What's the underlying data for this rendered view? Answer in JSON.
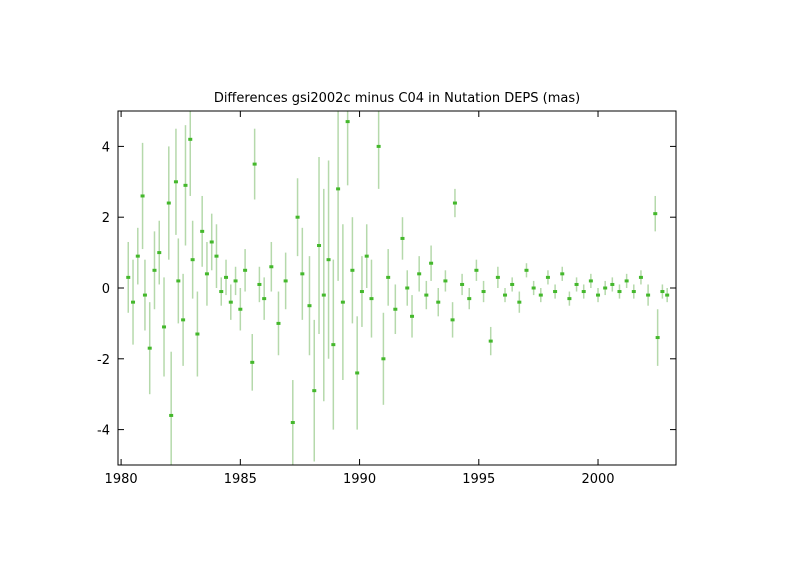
{
  "chart_data": {
    "type": "scatter",
    "title": "Differences gsi2002c minus C04 in Nutation DEPS (mas)",
    "xlim": [
      1979.87,
      2003.27
    ],
    "ylim": [
      -5,
      5
    ],
    "xticks": [
      1980,
      1985,
      1990,
      1995,
      2000
    ],
    "yticks": [
      -4,
      -2,
      0,
      2,
      4
    ],
    "point_color": "#44b82c",
    "error_color": "#b5d9ab",
    "x": [
      1980.3,
      1980.5,
      1980.7,
      1980.9,
      1981.0,
      1981.2,
      1981.4,
      1981.6,
      1981.8,
      1982.0,
      1982.1,
      1982.3,
      1982.4,
      1982.6,
      1982.7,
      1982.9,
      1983.0,
      1983.2,
      1983.4,
      1983.6,
      1983.8,
      1984.0,
      1984.2,
      1984.4,
      1984.6,
      1984.8,
      1985.0,
      1985.2,
      1985.5,
      1985.6,
      1985.8,
      1986.0,
      1986.3,
      1986.6,
      1986.9,
      1987.2,
      1987.4,
      1987.6,
      1987.9,
      1988.1,
      1988.3,
      1988.5,
      1988.7,
      1988.9,
      1989.1,
      1989.3,
      1989.5,
      1989.7,
      1989.9,
      1990.1,
      1990.3,
      1990.5,
      1990.8,
      1991.0,
      1991.2,
      1991.5,
      1991.8,
      1992.0,
      1992.2,
      1992.5,
      1992.8,
      1993.0,
      1993.3,
      1993.6,
      1993.9,
      1994.0,
      1994.3,
      1994.6,
      1994.9,
      1995.2,
      1995.5,
      1995.8,
      1996.1,
      1996.4,
      1996.7,
      1997.0,
      1997.3,
      1997.6,
      1997.9,
      1998.2,
      1998.5,
      1998.8,
      1999.1,
      1999.4,
      1999.7,
      2000.0,
      2000.3,
      2000.6,
      2000.9,
      2001.2,
      2001.5,
      2001.8,
      2002.1,
      2002.4,
      2002.5,
      2002.7,
      2002.9
    ],
    "values": [
      0.3,
      -0.4,
      0.9,
      2.6,
      -0.2,
      -1.7,
      0.5,
      1.0,
      -1.1,
      2.4,
      -3.6,
      3.0,
      0.2,
      -0.9,
      2.9,
      4.2,
      0.8,
      -1.3,
      1.6,
      0.4,
      1.3,
      0.9,
      -0.1,
      0.3,
      -0.4,
      0.2,
      -0.6,
      0.5,
      -2.1,
      3.5,
      0.1,
      -0.3,
      0.6,
      -1.0,
      0.2,
      -3.8,
      2.0,
      0.4,
      -0.5,
      -2.9,
      1.2,
      -0.2,
      0.8,
      -1.6,
      2.8,
      -0.4,
      4.7,
      0.5,
      -2.4,
      -0.1,
      0.9,
      -0.3,
      4.0,
      -2.0,
      0.3,
      -0.6,
      1.4,
      0.0,
      -0.8,
      0.4,
      -0.2,
      0.7,
      -0.4,
      0.2,
      -0.9,
      2.4,
      0.1,
      -0.3,
      0.5,
      -0.1,
      -1.5,
      0.3,
      -0.2,
      0.1,
      -0.4,
      0.5,
      0.0,
      -0.2,
      0.3,
      -0.1,
      0.4,
      -0.3,
      0.1,
      -0.1,
      0.2,
      -0.2,
      0.0,
      0.1,
      -0.1,
      0.2,
      -0.1,
      0.3,
      -0.2,
      2.1,
      -1.4,
      -0.1,
      -0.2
    ],
    "errors": [
      1.0,
      1.2,
      0.8,
      1.5,
      1.0,
      1.3,
      1.1,
      0.9,
      1.4,
      1.6,
      1.8,
      1.5,
      1.2,
      1.3,
      1.7,
      1.6,
      1.1,
      1.2,
      1.0,
      0.9,
      0.8,
      0.9,
      0.4,
      0.5,
      0.5,
      0.4,
      0.6,
      0.6,
      0.8,
      1.0,
      0.5,
      0.6,
      0.7,
      0.9,
      0.8,
      1.2,
      1.1,
      1.3,
      1.4,
      2.0,
      2.5,
      3.0,
      2.8,
      2.4,
      2.6,
      2.2,
      1.8,
      1.5,
      1.6,
      1.0,
      0.9,
      1.1,
      1.2,
      1.3,
      0.8,
      0.7,
      0.6,
      0.5,
      0.6,
      0.5,
      0.4,
      0.5,
      0.4,
      0.3,
      0.5,
      0.4,
      0.3,
      0.3,
      0.3,
      0.3,
      0.4,
      0.3,
      0.2,
      0.2,
      0.3,
      0.2,
      0.2,
      0.2,
      0.2,
      0.2,
      0.2,
      0.2,
      0.2,
      0.2,
      0.2,
      0.2,
      0.2,
      0.2,
      0.2,
      0.2,
      0.2,
      0.2,
      0.3,
      0.5,
      0.8,
      0.2,
      0.2
    ]
  }
}
